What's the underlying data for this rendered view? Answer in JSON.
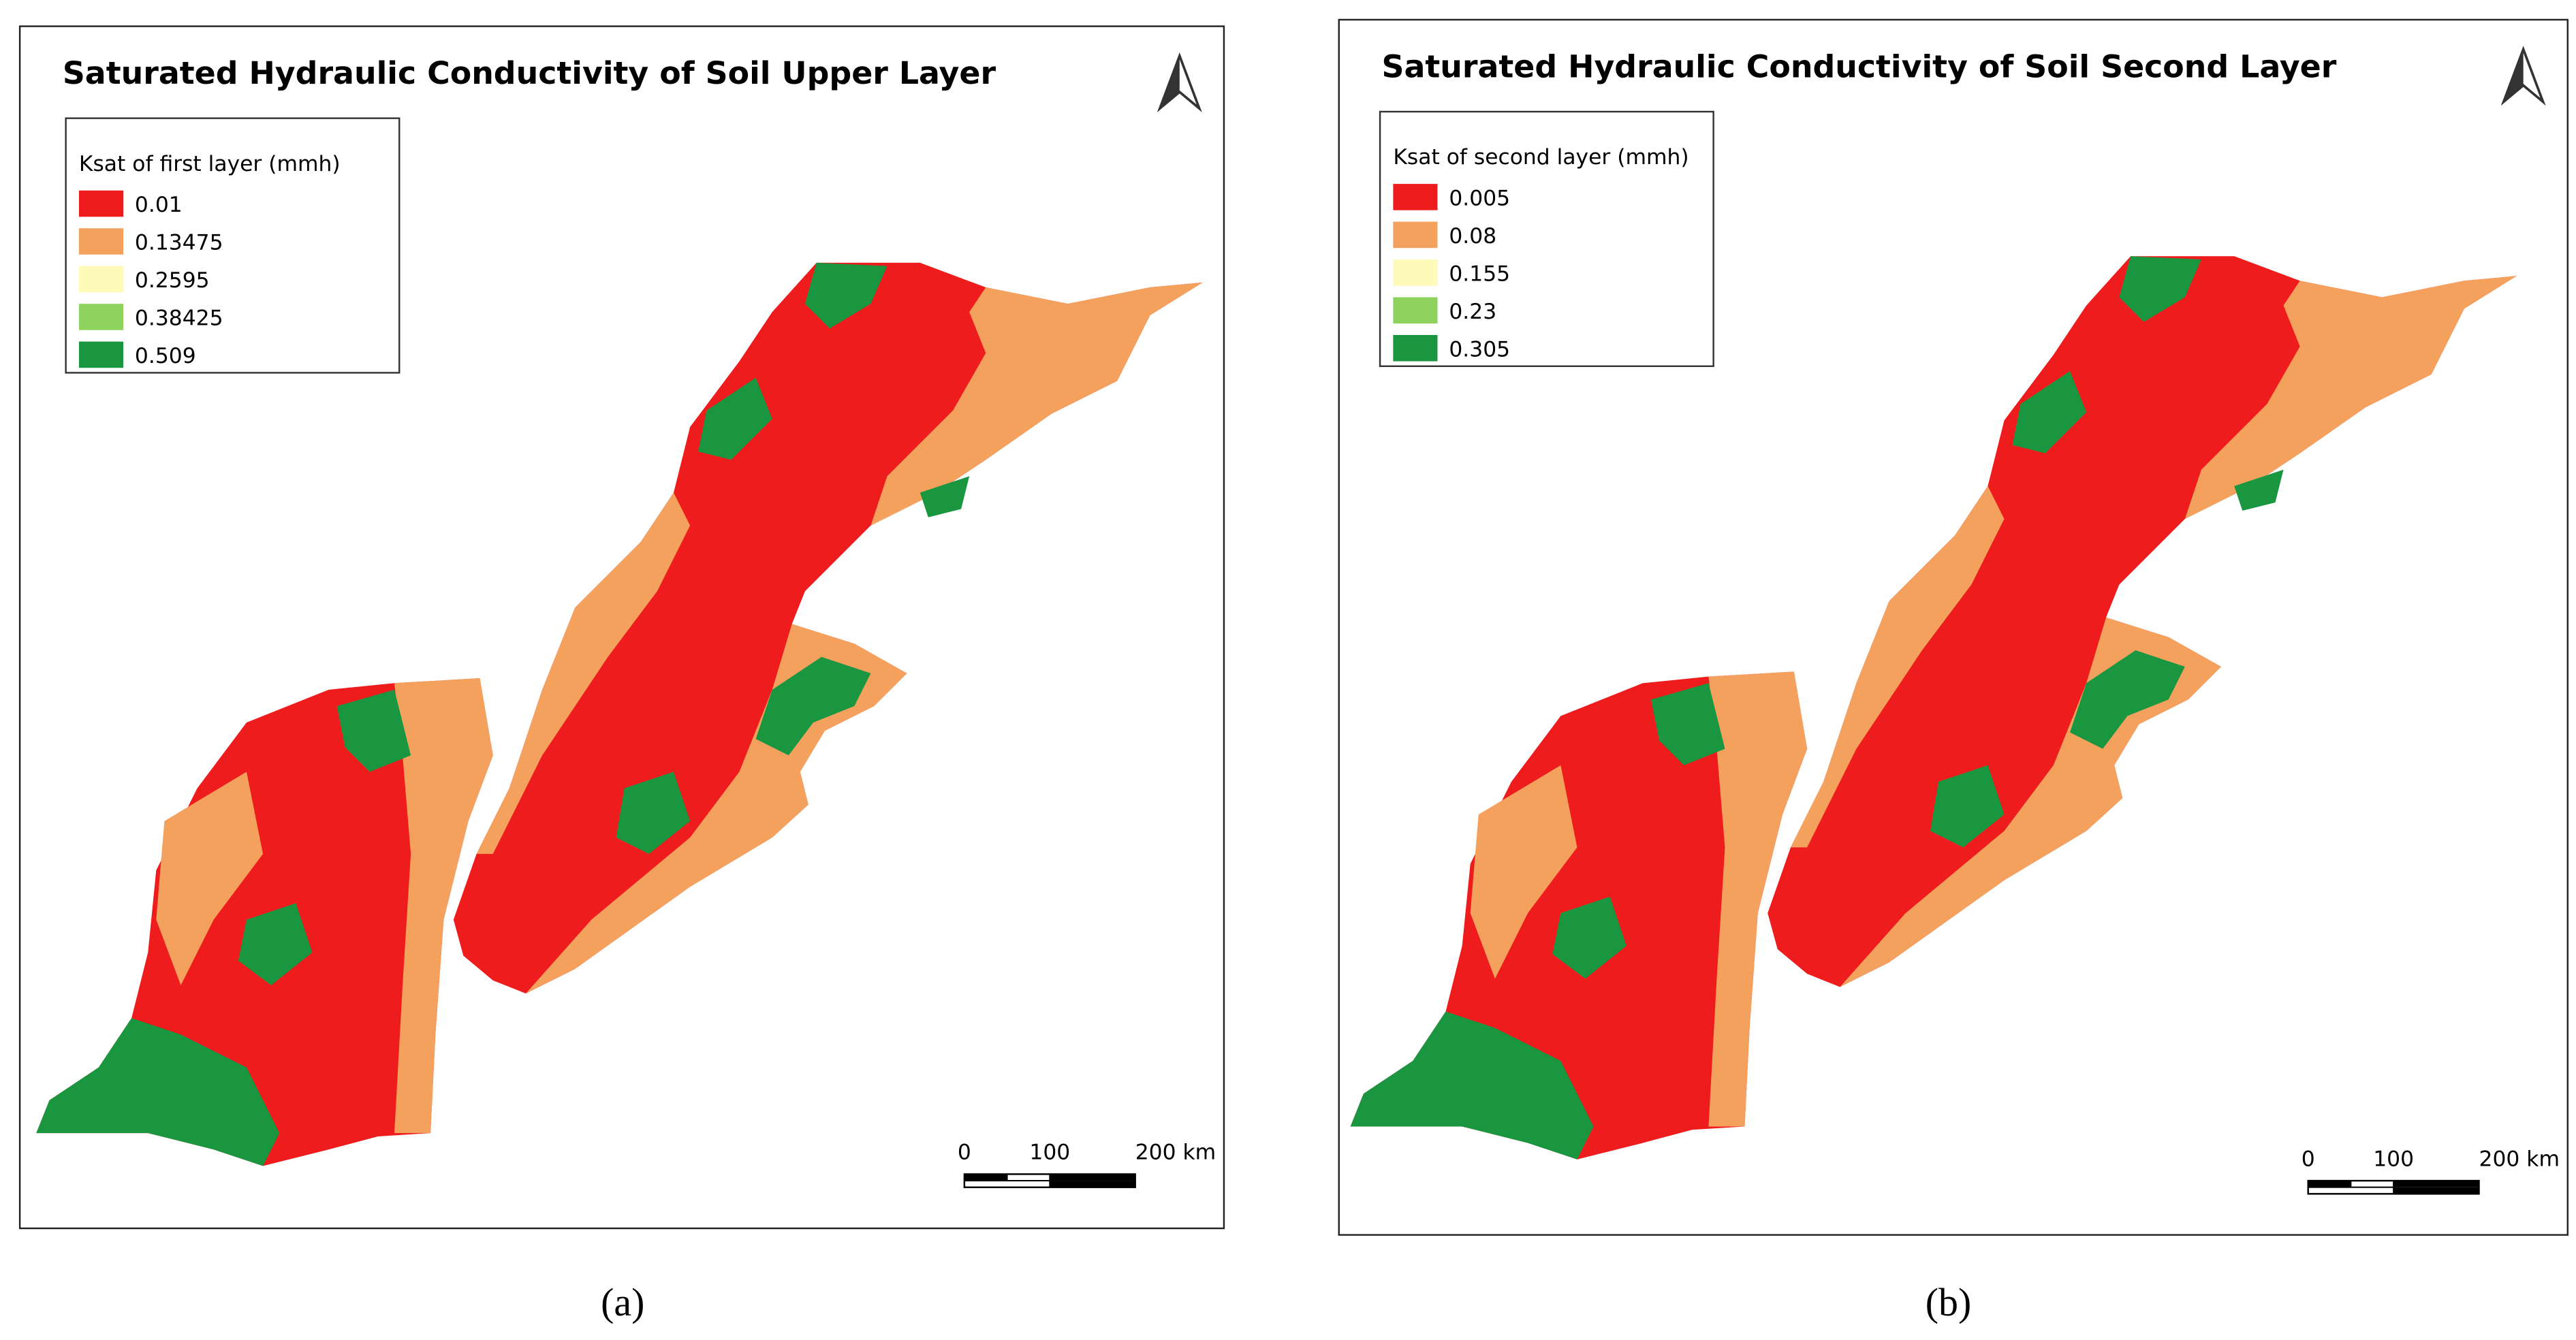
{
  "panels": [
    {
      "title": "Saturated Hydraulic Conductivity of Soil Upper Layer",
      "legend": {
        "title": "Ksat of first layer (mmh)",
        "items": [
          {
            "label": "0.01",
            "color": "#ee1c1c"
          },
          {
            "label": "0.13475",
            "color": "#f5a15e"
          },
          {
            "label": "0.2595",
            "color": "#fdfbb7"
          },
          {
            "label": "0.38425",
            "color": "#8fd35f"
          },
          {
            "label": "0.509",
            "color": "#1a9641"
          }
        ]
      },
      "scale_bar": [
        "0",
        "100",
        "200 km"
      ],
      "caption": "(a)"
    },
    {
      "title": "Saturated Hydraulic Conductivity of Soil Second Layer",
      "legend": {
        "title": "Ksat of second layer (mmh)",
        "items": [
          {
            "label": "0.005",
            "color": "#ee1c1c"
          },
          {
            "label": "0.08",
            "color": "#f5a15e"
          },
          {
            "label": "0.155",
            "color": "#fdfbb7"
          },
          {
            "label": "0.23",
            "color": "#8fd35f"
          },
          {
            "label": "0.305",
            "color": "#1a9641"
          }
        ]
      },
      "scale_bar": [
        "0",
        "100",
        "200 km"
      ],
      "caption": "(b)"
    }
  ]
}
